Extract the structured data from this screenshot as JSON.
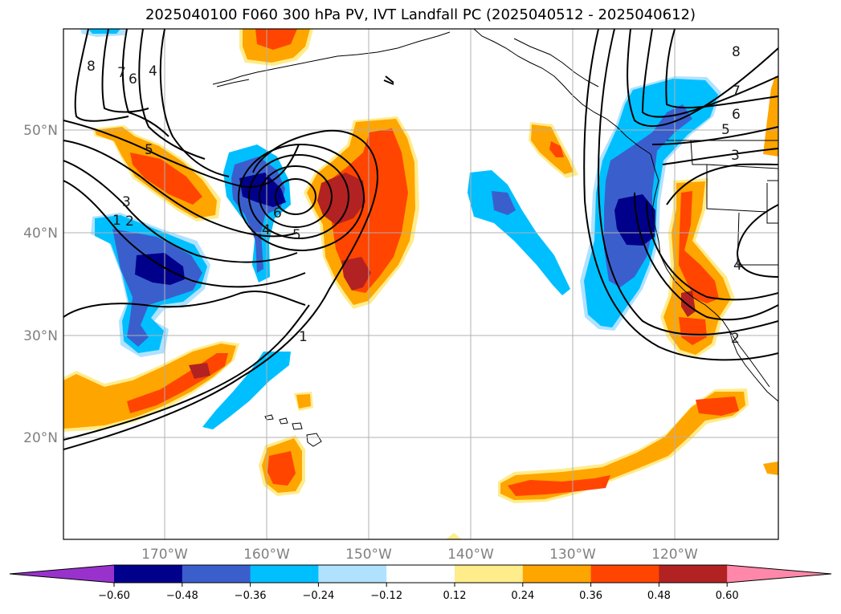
{
  "title": "2025040100 F060 300 hPa PV, IVT Landfall PC (2025040512 - 2025040612)",
  "axes": {
    "lat_labels": [
      "50°N",
      "40°N",
      "30°N",
      "20°N"
    ],
    "lon_labels": [
      "170°W",
      "160°W",
      "150°W",
      "140°W",
      "130°W",
      "120°W"
    ]
  },
  "colorbar": {
    "ticks": [
      "−0.60",
      "−0.48",
      "−0.36",
      "−0.24",
      "−0.12",
      "0.12",
      "0.24",
      "0.36",
      "0.48",
      "0.60"
    ],
    "colors": [
      "#9932cc",
      "#00008b",
      "#3a5fcd",
      "#00bfff",
      "#b0e2ff",
      "#ffffff",
      "#ffec8b",
      "#ffa500",
      "#ff4500",
      "#b22222",
      "#ff88aa"
    ]
  },
  "pv_contour_labels": [
    "8",
    "7",
    "6",
    "4",
    "3",
    "5",
    "1",
    "2",
    "6",
    "4",
    "5",
    "1",
    "8",
    "7",
    "6",
    "5",
    "3",
    "4",
    "2"
  ]
}
